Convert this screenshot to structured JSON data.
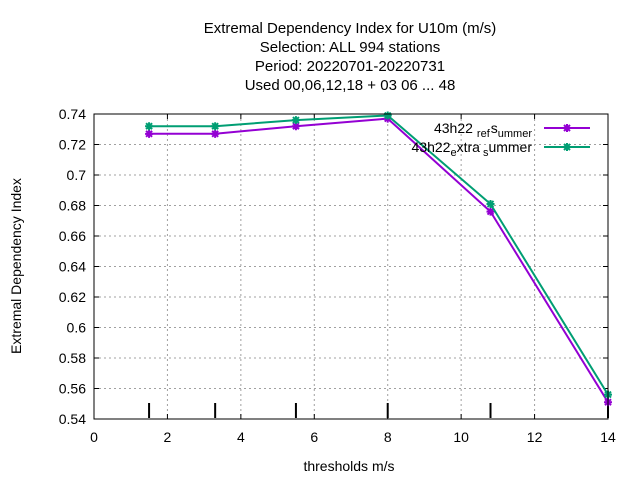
{
  "chart_data": {
    "type": "line",
    "title_lines": [
      "Extremal Dependency Index  for U10m (m/s)",
      "Selection: ALL     994 stations",
      "Period: 20220701-20220731",
      "Used  00,06,12,18  + 03 06 ... 48"
    ],
    "xlabel": "thresholds m/s",
    "ylabel": "Extremal Dependency Index",
    "xlim": [
      0,
      14
    ],
    "ylim": [
      0.54,
      0.74
    ],
    "xticks": [
      0,
      2,
      4,
      6,
      8,
      10,
      12,
      14
    ],
    "yticks": [
      0.54,
      0.56,
      0.58,
      0.6,
      0.62,
      0.64,
      0.66,
      0.68,
      0.7,
      0.72,
      0.74
    ],
    "ytick_labels": [
      "0.54",
      "0.56",
      "0.58",
      "0.6",
      "0.62",
      "0.64",
      "0.66",
      "0.68",
      "0.7",
      "0.72",
      "0.74"
    ],
    "grid": true,
    "legend_position": "top-right",
    "threshold_markers": [
      1.5,
      3.3,
      5.5,
      8.0,
      10.8,
      14.0
    ],
    "series": [
      {
        "name": "43h22_ref_summer",
        "legend_parts": [
          "43h22",
          "ref",
          "s",
          "ummer"
        ],
        "color": "#9400d3",
        "x": [
          1.5,
          3.3,
          5.5,
          8.0,
          10.8,
          14.0
        ],
        "y": [
          0.727,
          0.727,
          0.732,
          0.737,
          0.676,
          0.551
        ]
      },
      {
        "name": "43h22_extra_summer",
        "legend_parts": [
          "43h22",
          "e",
          "xtra",
          "s",
          "ummer"
        ],
        "color": "#009e73",
        "x": [
          1.5,
          3.3,
          5.5,
          8.0,
          10.8,
          14.0
        ],
        "y": [
          0.732,
          0.732,
          0.736,
          0.739,
          0.681,
          0.556
        ]
      }
    ]
  }
}
